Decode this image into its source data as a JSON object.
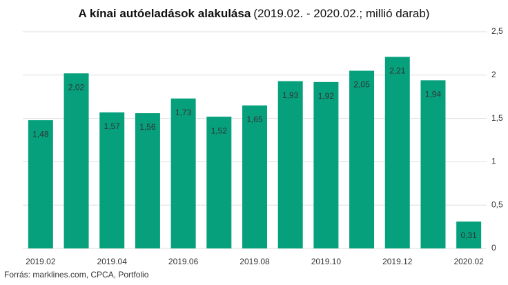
{
  "chart_data": {
    "type": "bar",
    "title": "A kínai autóeladások alakulása",
    "subtitle": "(2019.02. - 2020.02.; millió darab)",
    "source": "Forrás: marklines.com,  CPCA, Portfolio",
    "categories": [
      "2019.02",
      null,
      "2019.04",
      null,
      "2019.06",
      null,
      "2019.08",
      null,
      "2019.10",
      null,
      "2019.12",
      null,
      "2020.02"
    ],
    "values": [
      1.48,
      2.02,
      1.57,
      1.56,
      1.73,
      1.52,
      1.65,
      1.93,
      1.92,
      2.05,
      2.21,
      1.94,
      0.31
    ],
    "value_labels": [
      "1,48",
      "2,02",
      "1,57",
      "1,56",
      "1,73",
      "1,52",
      "1,65",
      "1,93",
      "1,92",
      "2,05",
      "2,21",
      "1,94",
      "0,31"
    ],
    "color": "#06a07c",
    "ylim": [
      0,
      2.5
    ],
    "yticks": [
      0,
      {
        "value": 0.5,
        "label": "0,5"
      },
      1,
      {
        "value": 1.5,
        "label": "1,5"
      },
      2,
      {
        "value": 2.5,
        "label": "2,5"
      }
    ],
    "grid": true
  }
}
